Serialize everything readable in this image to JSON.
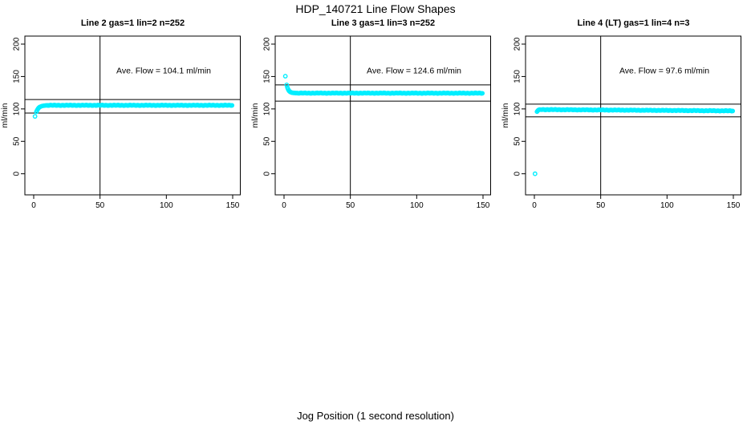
{
  "figure": {
    "title": "HDP_140721  Line Flow Shapes",
    "xlabel": "Jog Position (1 second resolution)",
    "background": "#ffffff",
    "axis_color": "#000000",
    "point_color": "#00eeff"
  },
  "chart_data": [
    {
      "type": "scatter",
      "title": "Line 2 gas=1 lin=2 n=252",
      "annotation": "Ave. Flow =  104.1  ml/min",
      "ave_flow": 104.1,
      "n": 252,
      "ylabel": "ml/min",
      "x_ticks": [
        0,
        50,
        100,
        150
      ],
      "y_ticks": [
        0,
        50,
        100,
        150,
        200
      ],
      "xlim": [
        0,
        150
      ],
      "ylim": [
        0,
        200
      ],
      "vline_x": 50,
      "ref_lines": {
        "upper": 114.5,
        "lower": 93.7
      },
      "annotation_xy": [
        98,
        155
      ],
      "points_initial": [
        [
          1,
          88.5
        ],
        [
          2,
          95.5
        ],
        [
          2.5,
          97.6
        ],
        [
          3,
          99.5
        ],
        [
          3.5,
          101
        ],
        [
          4,
          102.1
        ],
        [
          4.5,
          102.9
        ],
        [
          5,
          103.4
        ],
        [
          6,
          104.3
        ],
        [
          7,
          104.8
        ],
        [
          8,
          105.1
        ],
        [
          9,
          105.4
        ],
        [
          10,
          105.5
        ]
      ],
      "steady": {
        "x_start": 10.75,
        "x_end": 150,
        "y_start": 105.6,
        "y_end": 105.6,
        "step": 0.75
      }
    },
    {
      "type": "scatter",
      "title": "Line 3 gas=1 lin=3 n=252",
      "annotation": "Ave. Flow =  124.6  ml/min",
      "ave_flow": 124.6,
      "n": 252,
      "ylabel": "ml/min",
      "x_ticks": [
        0,
        50,
        100,
        150
      ],
      "y_ticks": [
        0,
        50,
        100,
        150,
        200
      ],
      "xlim": [
        0,
        150
      ],
      "ylim": [
        0,
        200
      ],
      "vline_x": 50,
      "ref_lines": {
        "upper": 137.1,
        "lower": 112.1
      },
      "annotation_xy": [
        98,
        155
      ],
      "points_initial": [
        [
          1,
          150.5
        ],
        [
          2,
          137
        ],
        [
          2.5,
          133.2
        ],
        [
          3,
          130.6
        ],
        [
          3.5,
          128.7
        ],
        [
          4,
          127.4
        ],
        [
          4.5,
          126.5
        ],
        [
          5,
          125.9
        ],
        [
          6,
          125.1
        ],
        [
          7,
          124.8
        ],
        [
          8,
          124.6
        ],
        [
          9,
          124.5
        ],
        [
          10,
          124.5
        ]
      ],
      "steady": {
        "x_start": 10.75,
        "x_end": 150,
        "y_start": 124.4,
        "y_end": 124.3,
        "step": 0.75
      }
    },
    {
      "type": "scatter",
      "title": "Line 4 (LT) gas=1 lin=4 n=3",
      "annotation": "Ave. Flow =  97.6  ml/min",
      "ave_flow": 97.6,
      "n": 3,
      "ylabel": "ml/min",
      "x_ticks": [
        0,
        50,
        100,
        150
      ],
      "y_ticks": [
        0,
        50,
        100,
        150,
        200
      ],
      "xlim": [
        0,
        150
      ],
      "ylim": [
        0,
        200
      ],
      "vline_x": 50,
      "ref_lines": {
        "upper": 107.4,
        "lower": 87.8
      },
      "annotation_xy": [
        98,
        155
      ],
      "points_initial": [
        [
          0.5,
          0
        ],
        [
          2,
          95.8
        ],
        [
          2.5,
          97.2
        ],
        [
          3,
          98.2
        ],
        [
          3.5,
          98.7
        ],
        [
          4,
          99
        ]
      ],
      "steady": {
        "x_start": 4.75,
        "x_end": 150,
        "y_start": 99,
        "y_end": 97,
        "step": 0.75
      }
    }
  ]
}
